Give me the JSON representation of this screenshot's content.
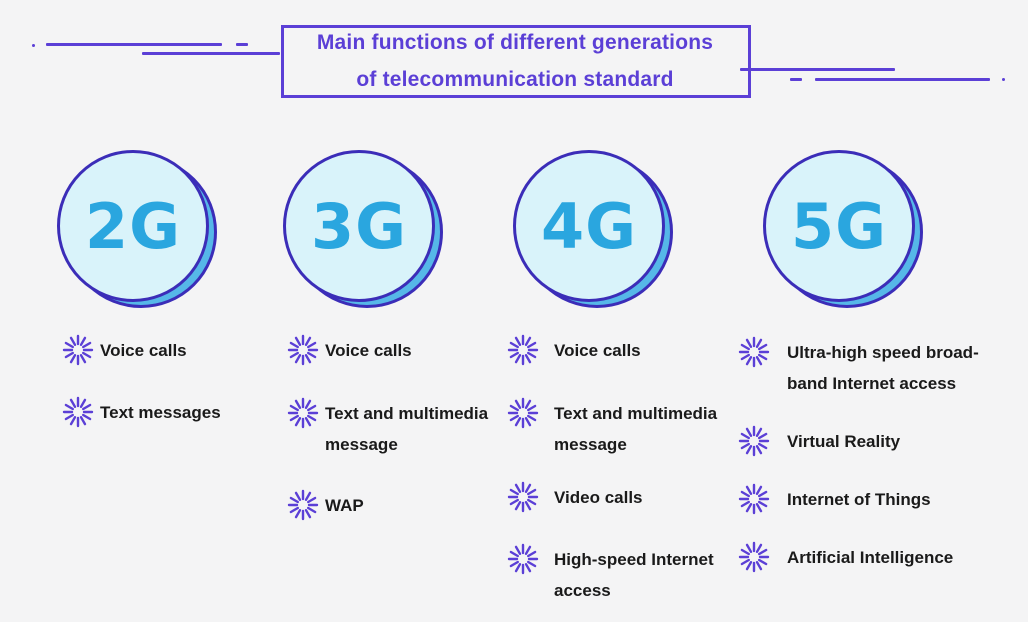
{
  "title": {
    "line1": "Main functions of different generations",
    "line2": "of telecommunication standard"
  },
  "colors": {
    "accent": "#5b3fd6",
    "circle_fill": "#d9f3fa",
    "circle_shadow": "#56b7e8",
    "circle_border": "#3b2db8",
    "gen_text": "#2aa6df"
  },
  "bullet_icon": "sparkle-icon",
  "generations": [
    {
      "label": "2G",
      "items": [
        {
          "lines": [
            "Voice calls"
          ]
        },
        {
          "lines": [
            "Text messages"
          ]
        }
      ]
    },
    {
      "label": "3G",
      "items": [
        {
          "lines": [
            "Voice calls"
          ]
        },
        {
          "lines": [
            "Text and multimedia",
            "message"
          ]
        },
        {
          "lines": [
            "WAP"
          ]
        }
      ]
    },
    {
      "label": "4G",
      "items": [
        {
          "lines": [
            "Voice calls"
          ]
        },
        {
          "lines": [
            "Text and multimedia",
            "message"
          ]
        },
        {
          "lines": [
            "Video calls"
          ]
        },
        {
          "lines": [
            "High-speed Internet",
            "access"
          ]
        }
      ]
    },
    {
      "label": "5G",
      "items": [
        {
          "lines": [
            "Ultra-high speed broad-",
            "band Internet access"
          ]
        },
        {
          "lines": [
            "Virtual Reality"
          ]
        },
        {
          "lines": [
            "Internet of Things"
          ]
        },
        {
          "lines": [
            "Artificial Intelligence"
          ]
        }
      ]
    }
  ]
}
